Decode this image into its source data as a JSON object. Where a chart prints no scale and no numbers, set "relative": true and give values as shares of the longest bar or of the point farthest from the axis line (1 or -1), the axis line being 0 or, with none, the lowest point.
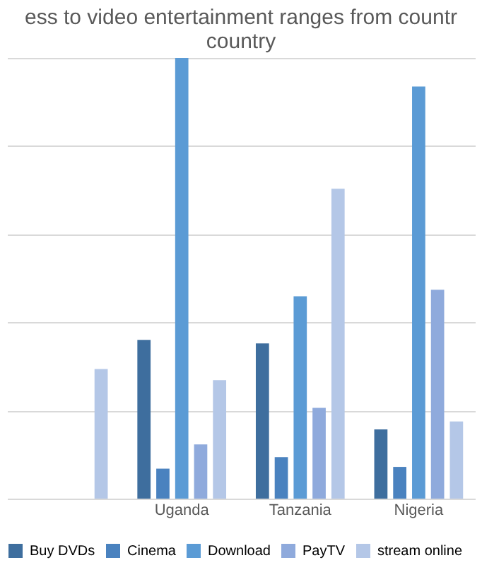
{
  "chart_data": {
    "type": "bar",
    "relative": true,
    "title": "ess to video entertainment ranges from countr\ncountry",
    "categories": [
      null,
      "Uganda",
      "Tanzania",
      "Nigeria"
    ],
    "series": [
      {
        "name": "Buy DVDs",
        "color": "#3e6e9e",
        "values": [
          null,
          0.36,
          0.352,
          0.157
        ]
      },
      {
        "name": "Cinema",
        "color": "#4a82bf",
        "values": [
          null,
          0.068,
          0.094,
          0.072
        ]
      },
      {
        "name": "Download",
        "color": "#5b9bd5",
        "values": [
          null,
          1.0,
          0.459,
          0.935
        ]
      },
      {
        "name": "PayTV",
        "color": "#8faadc",
        "values": [
          null,
          0.123,
          0.206,
          0.474
        ]
      },
      {
        "name": "stream online",
        "color": "#b4c7e7",
        "values": [
          0.294,
          0.269,
          0.703,
          0.175
        ]
      }
    ],
    "grid": "y",
    "legend": "bottom"
  }
}
